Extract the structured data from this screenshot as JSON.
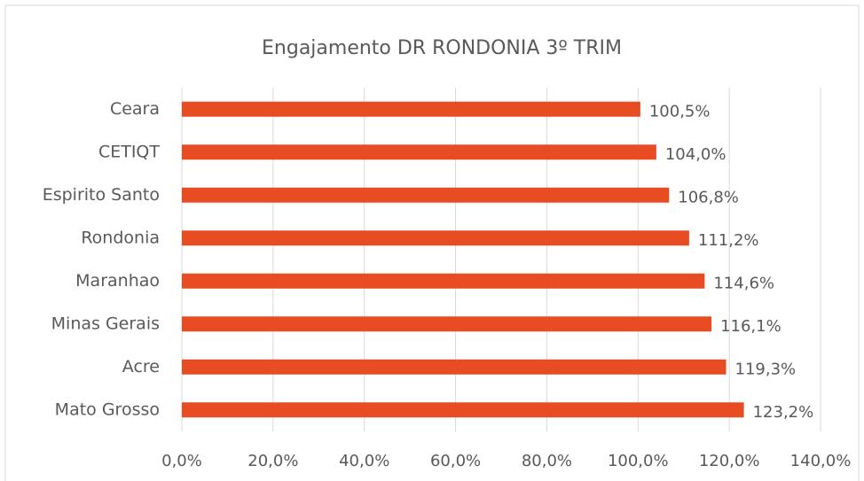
{
  "chart_data": {
    "type": "bar",
    "orientation": "horizontal",
    "title": "Engajamento DR RONDONIA 3º TRIM",
    "categories": [
      "Ceara",
      "CETIQT",
      "Espirito Santo",
      "Rondonia",
      "Maranhao",
      "Minas Gerais",
      "Acre",
      "Mato Grosso"
    ],
    "values": [
      100.5,
      104.0,
      106.8,
      111.2,
      114.6,
      116.1,
      119.3,
      123.2
    ],
    "value_labels": [
      "100,5%",
      "104,0%",
      "106,8%",
      "111,2%",
      "114,6%",
      "116,1%",
      "119,3%",
      "123,2%"
    ],
    "color": "#e84c22",
    "xlim": [
      0,
      140
    ],
    "xticks": [
      {
        "value": 0,
        "label": "0,0%"
      },
      {
        "value": 20,
        "label": "20,0%"
      },
      {
        "value": 40,
        "label": "40,0%"
      },
      {
        "value": 60,
        "label": "60,0%"
      },
      {
        "value": 80,
        "label": "80,0%"
      },
      {
        "value": 100,
        "label": "100,0%"
      },
      {
        "value": 120,
        "label": "120,0%"
      },
      {
        "value": 140,
        "label": "140,0%"
      }
    ],
    "grid": true
  }
}
